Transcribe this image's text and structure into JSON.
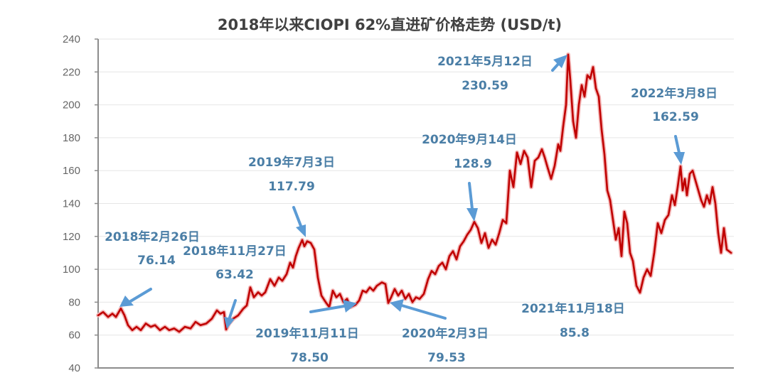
{
  "chart_data": {
    "type": "line",
    "title": "2018年以来CIOPI 62%直进矿价格走势 (USD/t)",
    "xlabel": "",
    "ylabel": "",
    "ylim": [
      40,
      240
    ],
    "yticks": [
      40,
      60,
      80,
      100,
      120,
      140,
      160,
      180,
      200,
      220,
      240
    ],
    "grid": true,
    "legend": null,
    "series_color": "#c00000",
    "annotation_color": "#4a7ea6",
    "arrow_color": "#5b9bd5",
    "series": [
      {
        "name": "CIOPI 62%直进矿",
        "points": [
          [
            138,
            72
          ],
          [
            145,
            74
          ],
          [
            152,
            71
          ],
          [
            158,
            73
          ],
          [
            163,
            71
          ],
          [
            170,
            76.14
          ],
          [
            175,
            72
          ],
          [
            180,
            66
          ],
          [
            186,
            63
          ],
          [
            192,
            65
          ],
          [
            198,
            63
          ],
          [
            205,
            67
          ],
          [
            212,
            65
          ],
          [
            218,
            66
          ],
          [
            225,
            63
          ],
          [
            232,
            65
          ],
          [
            238,
            63
          ],
          [
            245,
            64
          ],
          [
            252,
            62
          ],
          [
            260,
            65
          ],
          [
            268,
            64
          ],
          [
            275,
            68
          ],
          [
            282,
            66
          ],
          [
            290,
            67
          ],
          [
            298,
            70
          ],
          [
            305,
            75
          ],
          [
            310,
            73
          ],
          [
            315,
            74
          ],
          [
            318,
            63.42
          ],
          [
            322,
            67
          ],
          [
            328,
            70
          ],
          [
            335,
            72
          ],
          [
            342,
            76
          ],
          [
            347,
            78
          ],
          [
            352,
            89
          ],
          [
            357,
            83
          ],
          [
            363,
            86
          ],
          [
            368,
            84
          ],
          [
            373,
            86
          ],
          [
            380,
            94
          ],
          [
            386,
            90
          ],
          [
            392,
            95
          ],
          [
            397,
            93
          ],
          [
            403,
            97
          ],
          [
            408,
            104
          ],
          [
            412,
            101
          ],
          [
            416,
            108
          ],
          [
            420,
            113
          ],
          [
            425,
            117.79
          ],
          [
            428,
            114
          ],
          [
            432,
            117
          ],
          [
            437,
            116
          ],
          [
            442,
            112
          ],
          [
            447,
            95
          ],
          [
            452,
            84
          ],
          [
            458,
            80
          ],
          [
            463,
            77
          ],
          [
            468,
            87
          ],
          [
            473,
            83
          ],
          [
            478,
            85
          ],
          [
            483,
            80
          ],
          [
            488,
            82
          ],
          [
            493,
            77
          ],
          [
            500,
            78.5
          ],
          [
            505,
            81
          ],
          [
            510,
            87
          ],
          [
            515,
            86
          ],
          [
            520,
            89
          ],
          [
            525,
            87
          ],
          [
            530,
            90
          ],
          [
            537,
            92
          ],
          [
            542,
            91
          ],
          [
            546,
            79.53
          ],
          [
            550,
            83
          ],
          [
            555,
            88
          ],
          [
            560,
            84
          ],
          [
            565,
            87
          ],
          [
            570,
            82
          ],
          [
            575,
            85
          ],
          [
            580,
            80
          ],
          [
            585,
            83
          ],
          [
            590,
            82
          ],
          [
            596,
            85
          ],
          [
            602,
            94
          ],
          [
            607,
            99
          ],
          [
            612,
            97
          ],
          [
            617,
            102
          ],
          [
            622,
            104
          ],
          [
            627,
            100
          ],
          [
            632,
            108
          ],
          [
            637,
            111
          ],
          [
            642,
            106
          ],
          [
            647,
            114
          ],
          [
            652,
            117
          ],
          [
            657,
            121
          ],
          [
            662,
            124
          ],
          [
            667,
            128.9
          ],
          [
            672,
            125
          ],
          [
            677,
            116
          ],
          [
            682,
            122
          ],
          [
            687,
            113
          ],
          [
            692,
            118
          ],
          [
            697,
            115
          ],
          [
            702,
            122
          ],
          [
            707,
            130
          ],
          [
            712,
            128
          ],
          [
            717,
            160
          ],
          [
            722,
            150
          ],
          [
            727,
            171
          ],
          [
            732,
            164
          ],
          [
            737,
            172
          ],
          [
            742,
            168
          ],
          [
            747,
            150
          ],
          [
            752,
            166
          ],
          [
            757,
            168
          ],
          [
            762,
            173
          ],
          [
            766,
            168
          ],
          [
            770,
            162
          ],
          [
            775,
            155
          ],
          [
            780,
            163
          ],
          [
            785,
            176
          ],
          [
            788,
            172
          ],
          [
            792,
            187
          ],
          [
            796,
            200
          ],
          [
            799,
            230.59
          ],
          [
            802,
            215
          ],
          [
            806,
            190
          ],
          [
            810,
            180
          ],
          [
            814,
            200
          ],
          [
            818,
            212
          ],
          [
            822,
            205
          ],
          [
            826,
            218
          ],
          [
            830,
            216
          ],
          [
            834,
            223
          ],
          [
            838,
            210
          ],
          [
            842,
            205
          ],
          [
            846,
            185
          ],
          [
            850,
            170
          ],
          [
            854,
            148
          ],
          [
            858,
            142
          ],
          [
            862,
            130
          ],
          [
            866,
            118
          ],
          [
            870,
            125
          ],
          [
            874,
            108
          ],
          [
            878,
            135
          ],
          [
            882,
            128
          ],
          [
            886,
            110
          ],
          [
            890,
            105
          ],
          [
            895,
            90
          ],
          [
            900,
            85.8
          ],
          [
            905,
            95
          ],
          [
            910,
            100
          ],
          [
            915,
            96
          ],
          [
            920,
            110
          ],
          [
            925,
            128
          ],
          [
            930,
            122
          ],
          [
            935,
            130
          ],
          [
            940,
            133
          ],
          [
            945,
            145
          ],
          [
            949,
            139
          ],
          [
            953,
            150
          ],
          [
            957,
            162.59
          ],
          [
            960,
            148
          ],
          [
            963,
            155
          ],
          [
            966,
            145
          ],
          [
            970,
            158
          ],
          [
            974,
            160
          ],
          [
            978,
            154
          ],
          [
            982,
            148
          ],
          [
            986,
            142
          ],
          [
            990,
            138
          ],
          [
            994,
            145
          ],
          [
            998,
            140
          ],
          [
            1002,
            150
          ],
          [
            1006,
            140
          ],
          [
            1010,
            122
          ],
          [
            1014,
            110
          ],
          [
            1018,
            125
          ],
          [
            1022,
            112
          ],
          [
            1028,
            110
          ]
        ]
      }
    ],
    "annotations": [
      {
        "date": "2018年2月26日",
        "value_label": "76.14",
        "value": 76.14
      },
      {
        "date": "2018年11月27日",
        "value_label": "63.42",
        "value": 63.42
      },
      {
        "date": "2019年7月3日",
        "value_label": "117.79",
        "value": 117.79
      },
      {
        "date": "2019年11月11日",
        "value_label": "78.50",
        "value": 78.5
      },
      {
        "date": "2020年2月3日",
        "value_label": "79.53",
        "value": 79.53
      },
      {
        "date": "2020年9月14日",
        "value_label": "128.9",
        "value": 128.9
      },
      {
        "date": "2021年5月12日",
        "value_label": "230.59",
        "value": 230.59
      },
      {
        "date": "2021年11月18日",
        "value_label": "85.8",
        "value": 85.8
      },
      {
        "date": "2022年3月8日",
        "value_label": "162.59",
        "value": 162.59
      }
    ]
  }
}
